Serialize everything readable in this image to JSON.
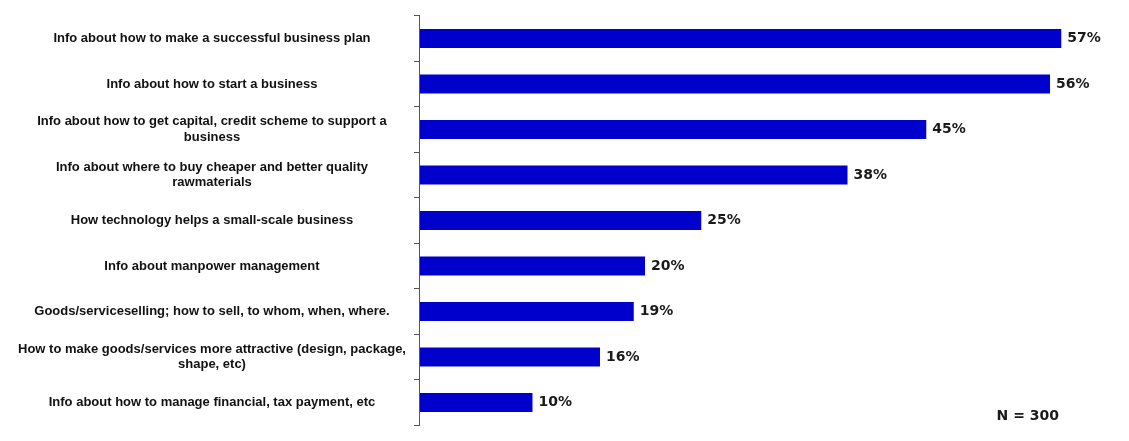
{
  "chart_data": {
    "type": "bar",
    "orientation": "horizontal",
    "categories": [
      "Info about how to make a successful business plan",
      "Info about how to start a business",
      "Info about how to get capital, credit scheme to support a business",
      "Info about where to buy cheaper and better quality rawmaterials",
      "How technology helps a small-scale business",
      "Info about manpower management",
      "Goods/serviceselling; how to sell, to whom, when, where.",
      "How to make goods/services more attractive (design, package, shape, etc)",
      "Info about how to manage financial, tax payment, etc"
    ],
    "values": [
      57,
      56,
      45,
      38,
      25,
      20,
      19,
      16,
      10
    ],
    "value_labels": [
      "57%",
      "56%",
      "45%",
      "38%",
      "25%",
      "20%",
      "19%",
      "16%",
      "10%"
    ],
    "color": "#0000cc",
    "annotations": [
      "N = 300"
    ],
    "grid": false,
    "legend": false
  }
}
